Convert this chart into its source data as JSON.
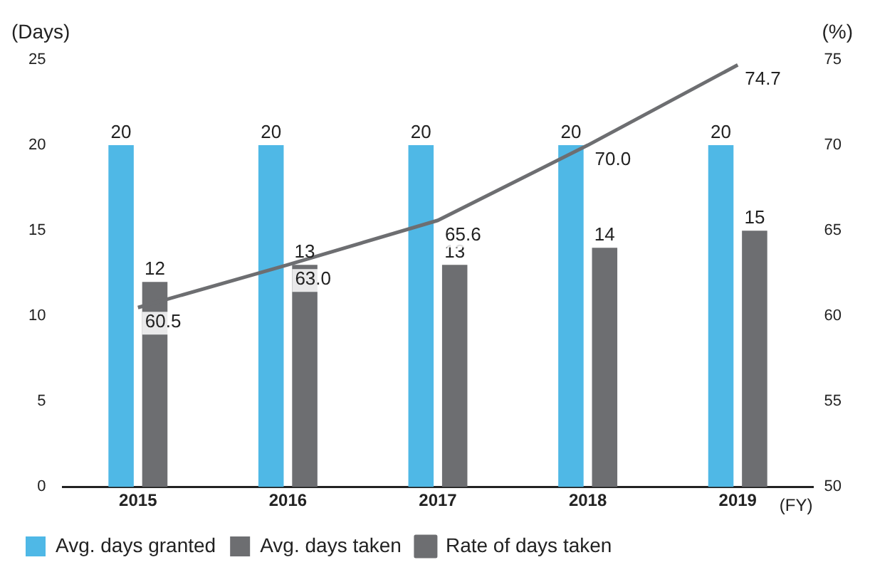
{
  "chart_data": {
    "type": "bar",
    "xlabel": "(FY)",
    "ylabel": "(Days)",
    "y2label": "(%)",
    "categories": [
      "2015",
      "2016",
      "2017",
      "2018",
      "2019"
    ],
    "series": [
      {
        "name": "Avg. days granted",
        "color": "#4fb8e6",
        "values": [
          20,
          20,
          20,
          20,
          20
        ]
      },
      {
        "name": "Avg. days taken",
        "color": "#6d6e71",
        "values": [
          12,
          13,
          13,
          14,
          15
        ]
      },
      {
        "name": "Rate of days taken",
        "type": "line",
        "axis": "y2",
        "color": "#6d6e71",
        "values": [
          60.5,
          63.0,
          65.6,
          70.0,
          74.7
        ],
        "value_labels": [
          "60.5",
          "63.0",
          "65.6",
          "70.0",
          "74.7"
        ]
      }
    ],
    "ylim": [
      0,
      25
    ],
    "yticks": [
      0,
      5,
      10,
      15,
      20,
      25
    ],
    "y2lim": [
      50,
      75
    ],
    "y2ticks": [
      50,
      55,
      60,
      65,
      70,
      75
    ],
    "grid": false,
    "legend": "bottom",
    "marker": "none",
    "data_labels": true
  }
}
